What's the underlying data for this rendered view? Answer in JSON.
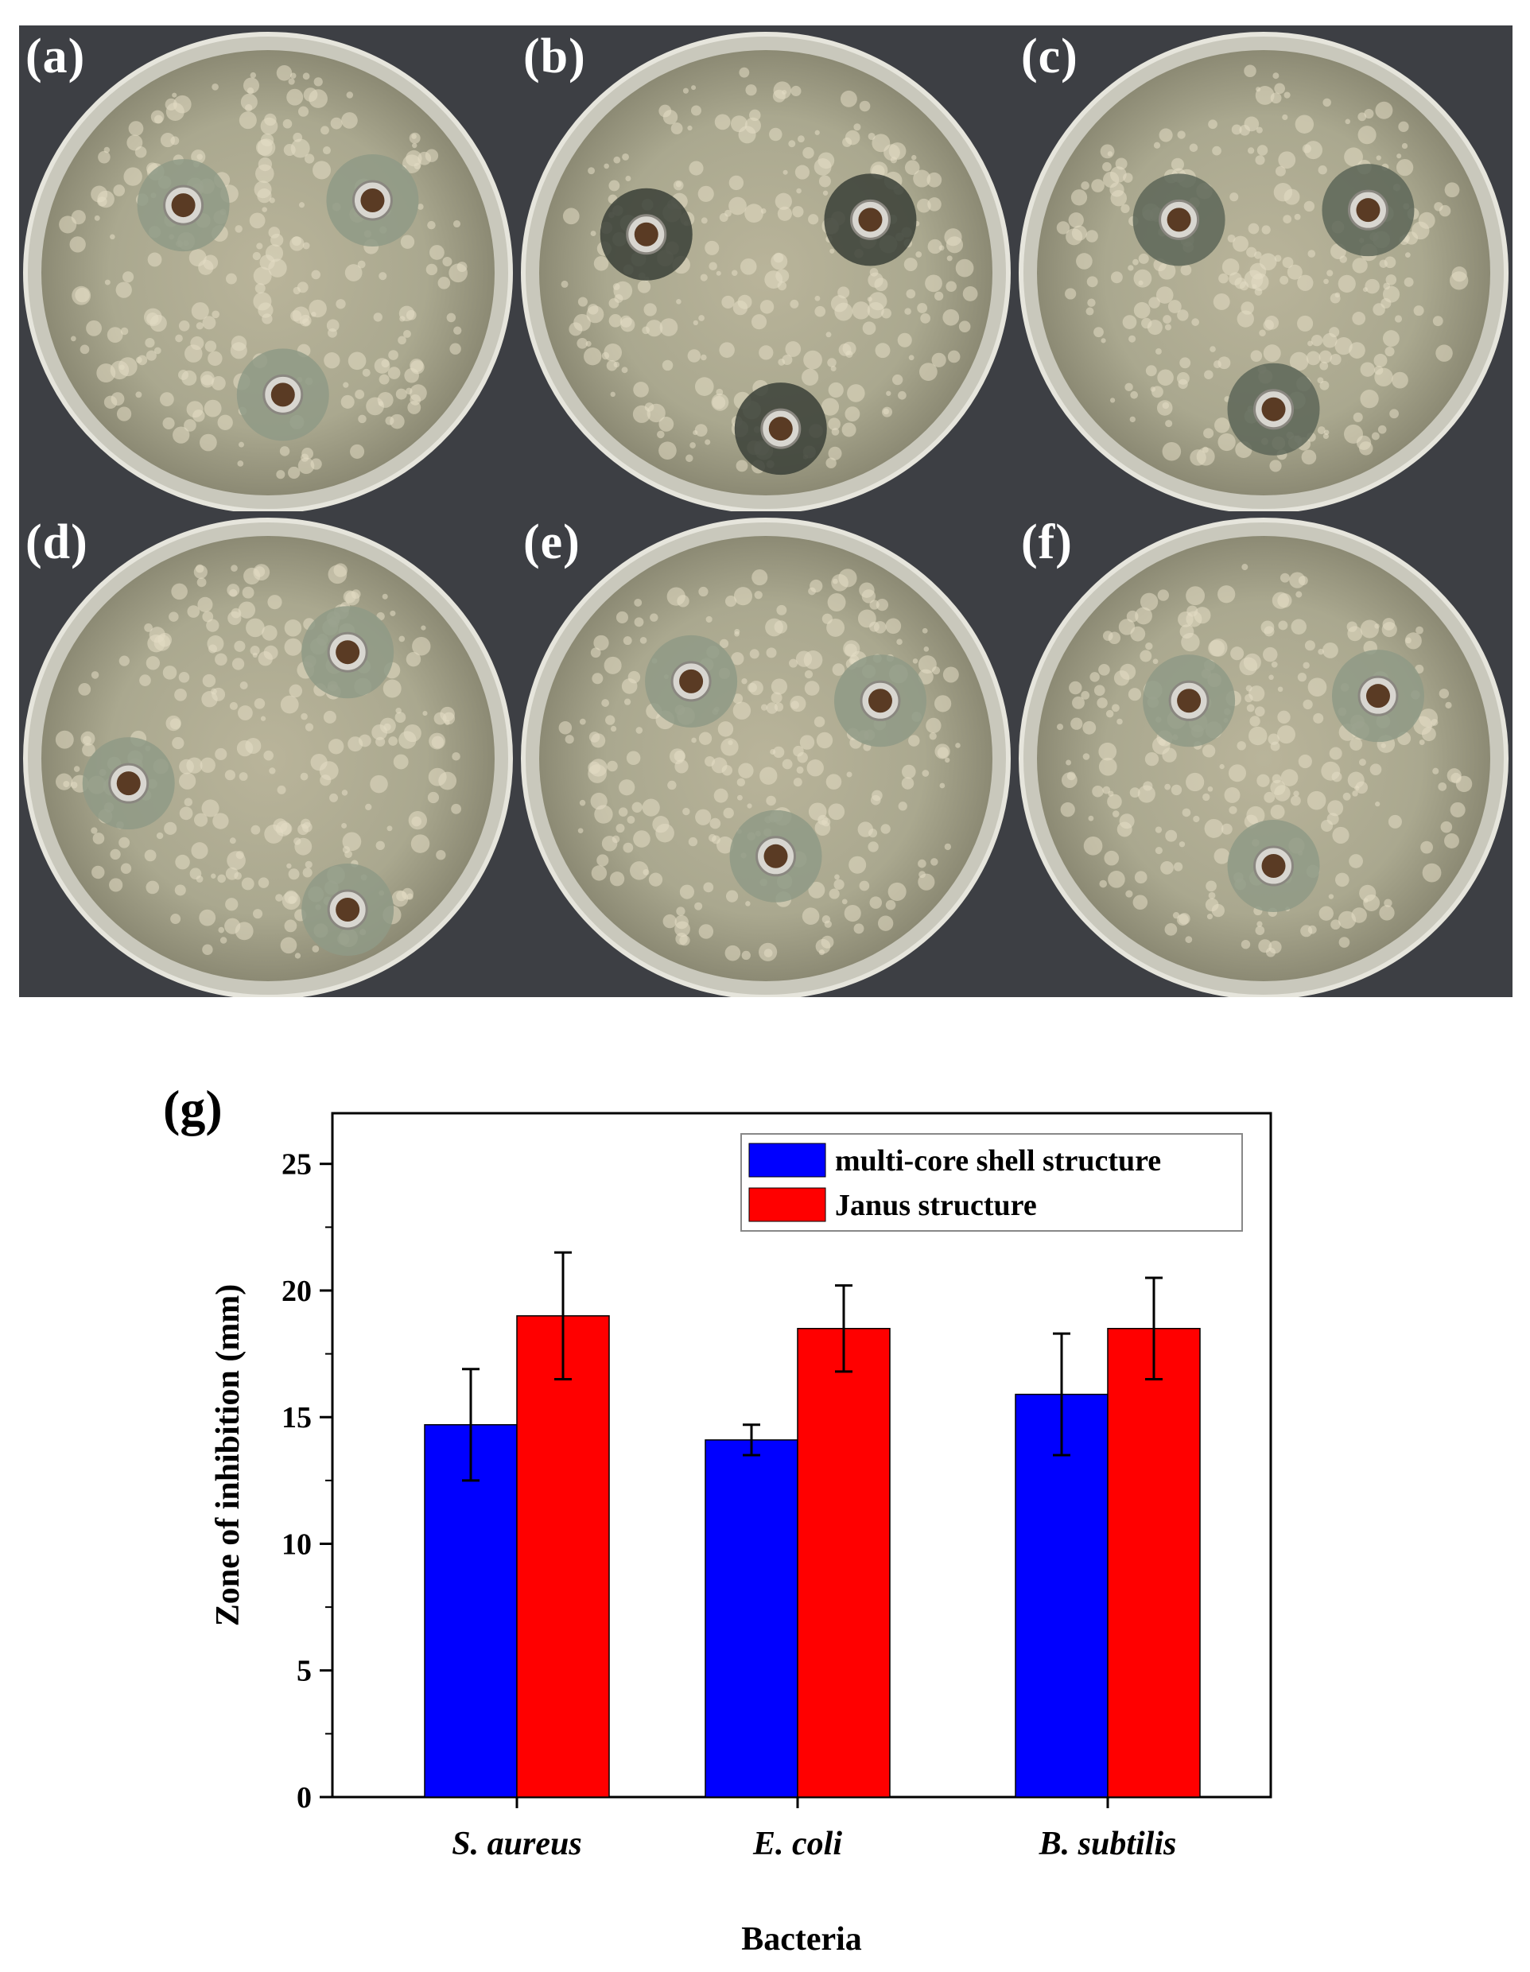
{
  "figure": {
    "panels": [
      {
        "label": "(a)",
        "wells": 3,
        "clear_zone_tone": "light"
      },
      {
        "label": "(b)",
        "wells": 3,
        "clear_zone_tone": "dark"
      },
      {
        "label": "(c)",
        "wells": 3,
        "clear_zone_tone": "medium"
      },
      {
        "label": "(d)",
        "wells": 3,
        "clear_zone_tone": "light"
      },
      {
        "label": "(e)",
        "wells": 3,
        "clear_zone_tone": "light"
      },
      {
        "label": "(f)",
        "wells": 3,
        "clear_zone_tone": "light"
      }
    ],
    "panel_g_label": "(g)"
  },
  "chart_data": {
    "type": "bar",
    "categories": [
      "S. aureus",
      "E. coli",
      "B. subtilis"
    ],
    "series": [
      {
        "name": "multi-core shell structure",
        "color": "#0000ff",
        "values": [
          14.7,
          14.1,
          15.9
        ],
        "errors": [
          2.2,
          0.6,
          2.4
        ]
      },
      {
        "name": "Janus structure",
        "color": "#ff0000",
        "values": [
          19.0,
          18.5,
          18.5
        ],
        "errors": [
          2.5,
          1.7,
          2.0
        ]
      }
    ],
    "xlabel": "Bacteria",
    "ylabel": "Zone of inhibition (mm)",
    "ylim": [
      0,
      27
    ],
    "yticks": [
      "0",
      "5",
      "10",
      "15",
      "20",
      "25"
    ],
    "grid": false,
    "legend_position": "top-right"
  }
}
